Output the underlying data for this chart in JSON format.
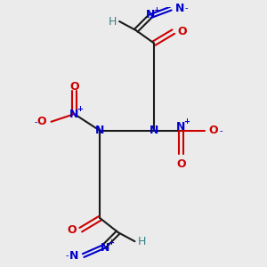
{
  "bg_color": "#ebebeb",
  "bond_color": "#1a1a1a",
  "nitrogen_color": "#0000cc",
  "oxygen_color": "#cc0000",
  "hydrogen_color": "#3a8080",
  "charge_color": "#0000cc",
  "line_width": 1.5,
  "figsize": [
    3.0,
    3.0
  ],
  "dpi": 100,
  "xlim": [
    0,
    10
  ],
  "ylim": [
    0,
    10
  ],
  "font_size": 9,
  "font_size_charge": 6
}
